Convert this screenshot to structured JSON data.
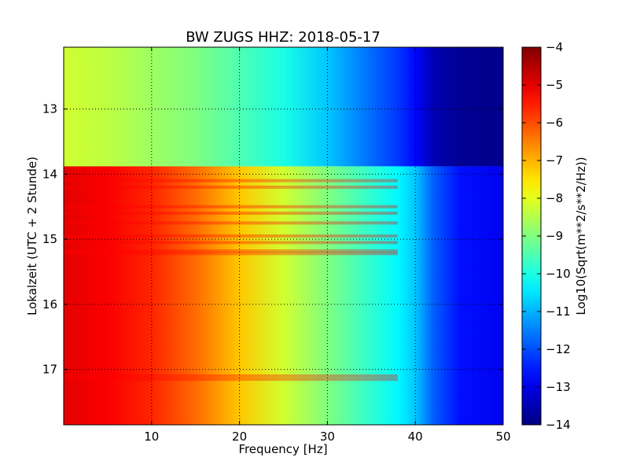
{
  "chart_data": {
    "type": "heatmap",
    "title": "BW ZUGS HHZ: 2018-05-17",
    "xlabel": "Frequency [Hz]",
    "ylabel": "Lokalzeit (UTC + 2 Stunde)",
    "colorbar_label": "Log10(Sqrt(m**2/s**2/Hz))",
    "colormap": "jet",
    "xlim": [
      0,
      50
    ],
    "ylim": [
      12.05,
      17.85
    ],
    "y_inverted": true,
    "grid": true,
    "x_ticks": [
      10,
      20,
      30,
      40,
      50
    ],
    "x_tick_labels": [
      "10",
      "20",
      "30",
      "40",
      "50"
    ],
    "y_ticks": [
      13,
      14,
      15,
      16,
      17
    ],
    "y_tick_labels": [
      "13",
      "14",
      "15",
      "16",
      "17"
    ],
    "color_range": [
      -14,
      -4
    ],
    "colorbar_ticks": [
      -4,
      -5,
      -6,
      -7,
      -8,
      -9,
      -10,
      -11,
      -12,
      -13,
      -14
    ],
    "colorbar_tick_labels": [
      "−4",
      "−5",
      "−6",
      "−7",
      "−8",
      "−9",
      "−10",
      "−11",
      "−12",
      "−13",
      "−14"
    ],
    "segments": [
      {
        "time_range": [
          12.05,
          13.88
        ],
        "frequency_hz": [
          0,
          5,
          10,
          15,
          20,
          25,
          30,
          35,
          38,
          40,
          42,
          45,
          50
        ],
        "log10_psd": [
          -8.2,
          -8.4,
          -8.7,
          -9.0,
          -9.5,
          -10.0,
          -10.8,
          -11.7,
          -12.2,
          -12.7,
          -13.5,
          -13.8,
          -13.9
        ]
      },
      {
        "time_range": [
          13.88,
          17.85
        ],
        "frequency_hz": [
          0,
          5,
          10,
          15,
          20,
          25,
          30,
          35,
          38,
          40,
          42,
          45,
          50
        ],
        "log10_psd": [
          -5.0,
          -5.2,
          -5.6,
          -6.3,
          -7.2,
          -8.2,
          -9.0,
          -9.8,
          -10.3,
          -10.8,
          -11.8,
          -12.6,
          -12.9
        ]
      }
    ],
    "bright_bands_hours": [
      14.1,
      14.2,
      14.5,
      14.6,
      14.75,
      14.95,
      15.05,
      15.18,
      15.22,
      17.1,
      17.15
    ]
  }
}
